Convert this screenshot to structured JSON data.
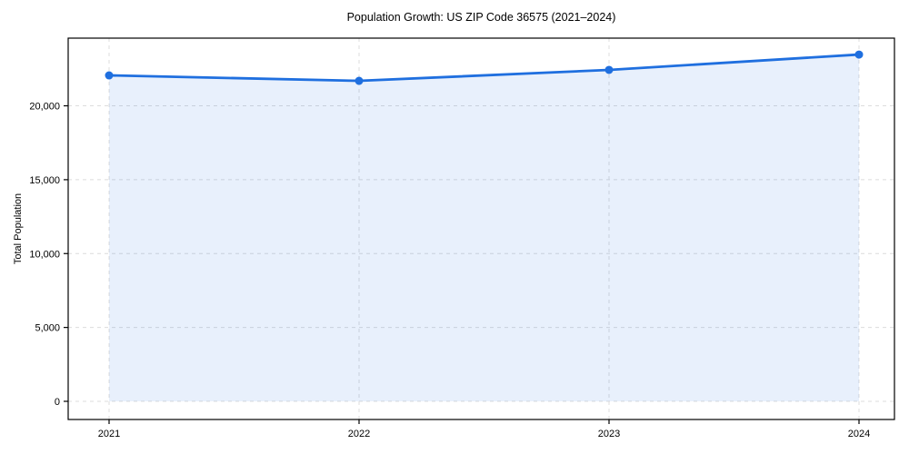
{
  "chart_data": {
    "type": "area",
    "title": "Population Growth: US ZIP Code 36575 (2021–2024)",
    "xlabel": "",
    "ylabel": "Total Population",
    "x": [
      2021,
      2022,
      2023,
      2024
    ],
    "series": [
      {
        "name": "Total Population",
        "values": [
          22060,
          21690,
          22430,
          23470
        ]
      }
    ],
    "xticklabels": [
      "2021",
      "2022",
      "2023",
      "2024"
    ],
    "yticks": [
      0,
      5000,
      10000,
      15000,
      20000
    ],
    "yticklabels": [
      "0",
      "5,000",
      "10,000",
      "15,000",
      "20,000"
    ],
    "ylim": [
      -1230,
      24580
    ],
    "grid": true,
    "grid_style": "dashed",
    "legend": "none",
    "marker": "circle",
    "colors": {
      "line": "#1f6fdf",
      "fill": "#1f6fdf",
      "fill_opacity": 0.1,
      "grid": "#dcdcdc",
      "spine": "#000000",
      "text": "#000000",
      "background": "#ffffff"
    }
  }
}
